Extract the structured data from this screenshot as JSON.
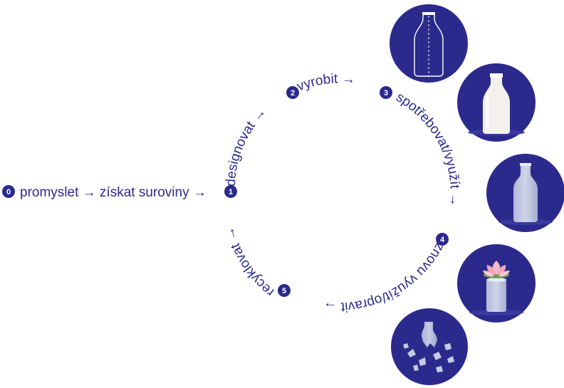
{
  "colors": {
    "primary": "#2b2a8c",
    "background": "#ffffff",
    "glass": "#dfe6f2",
    "milk": "#f4f1ec",
    "flower": "#f3b8c7"
  },
  "start": {
    "number": "0",
    "text": "promyslet → získat suroviny →"
  },
  "steps": [
    {
      "number": "1",
      "label": "designovat →",
      "icon": ""
    },
    {
      "number": "2",
      "label": "vyrobit →",
      "icon": "empty-bottle-outline-icon"
    },
    {
      "number": "3",
      "label": "spotřebovat/využít →",
      "icon": "milk-bottle-icon"
    },
    {
      "number": "4",
      "label": "znovu využít/opravit →",
      "icon": "empty-glass-bottle-icon"
    },
    {
      "number": "5",
      "label": "recyklovat →",
      "icon": "jar-with-flower-icon"
    }
  ],
  "final_icon": "broken-glass-icon"
}
